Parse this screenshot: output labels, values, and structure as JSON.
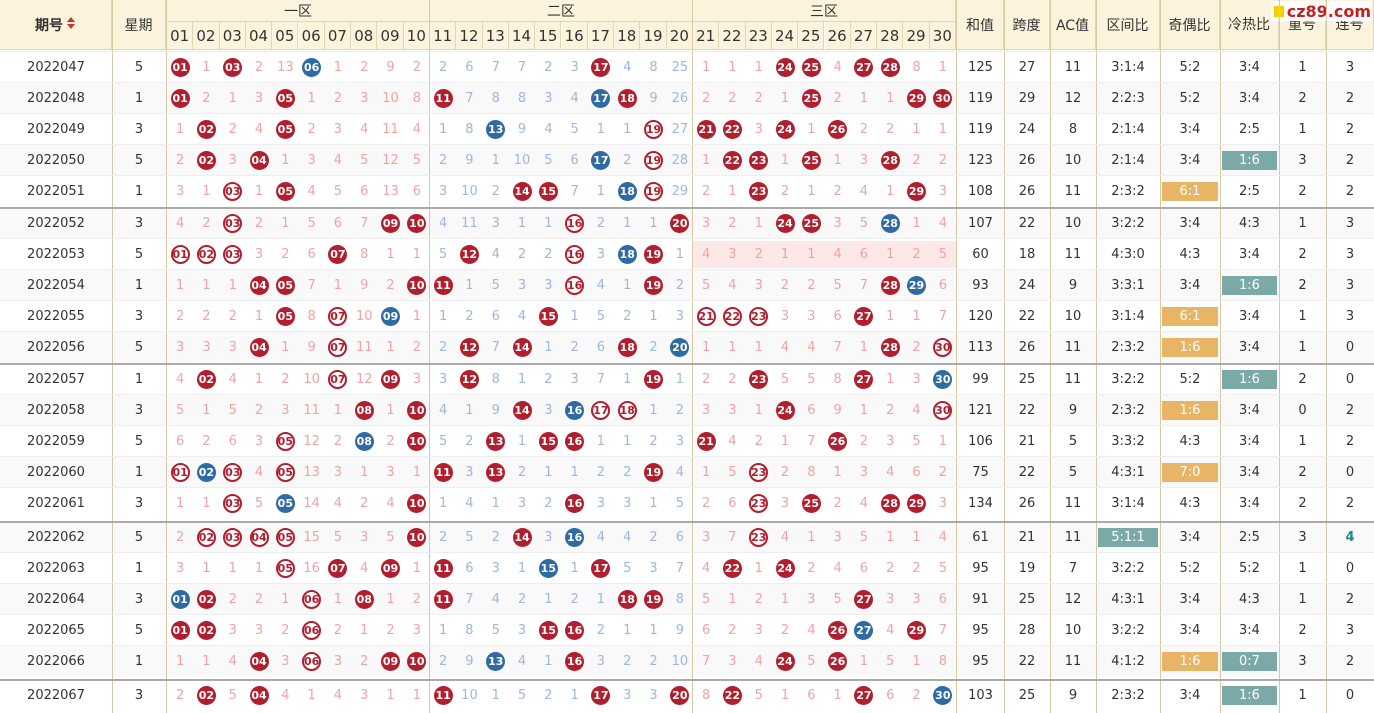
{
  "header": {
    "issue": "期号",
    "week": "星期",
    "zone1": "一区",
    "zone2": "二区",
    "zone3": "三区",
    "sum": "和值",
    "span": "跨度",
    "ac": "AC值",
    "zone_ratio": "区间比",
    "odd_even": "奇偶比",
    "hot_cold": "冷热比",
    "repeat": "重号",
    "consec": "连号",
    "numbers": [
      "01",
      "02",
      "03",
      "04",
      "05",
      "06",
      "07",
      "08",
      "09",
      "10",
      "11",
      "12",
      "13",
      "14",
      "15",
      "16",
      "17",
      "18",
      "19",
      "20",
      "21",
      "22",
      "23",
      "24",
      "25",
      "26",
      "27",
      "28",
      "29",
      "30"
    ]
  },
  "logo": {
    "text": "cz89.com"
  },
  "colors": {
    "ball_red": "#b11f2e",
    "ball_blue": "#2f6aa3",
    "tag_orange": "#e8b567",
    "tag_teal": "#7aa9a8",
    "header_bg": "#fcf3dc"
  },
  "rows": [
    {
      "issue": "2022047",
      "week": "5",
      "cells": [
        "r01",
        "1",
        "r03",
        "2",
        "13",
        "b06",
        "1",
        "2",
        "9",
        "2",
        "2",
        "6",
        "7",
        "7",
        "2",
        "3",
        "r17",
        "4",
        "8",
        "25",
        "1",
        "1",
        "1",
        "r24",
        "r25",
        "4",
        "r27",
        "r28",
        "8",
        "1"
      ],
      "sum": "125",
      "span": "27",
      "ac": "11",
      "zone": "3:1:4",
      "oe": "5:2",
      "hc": "3:4",
      "rep": "1",
      "con": "3"
    },
    {
      "issue": "2022048",
      "week": "1",
      "cells": [
        "r01",
        "2",
        "1",
        "3",
        "r05",
        "1",
        "2",
        "3",
        "10",
        "8",
        "r11",
        "7",
        "8",
        "8",
        "3",
        "4",
        "b17",
        "r18",
        "9",
        "26",
        "2",
        "2",
        "2",
        "1",
        "r25",
        "2",
        "1",
        "1",
        "r29",
        "r30"
      ],
      "sum": "119",
      "span": "29",
      "ac": "12",
      "zone": "2:2:3",
      "oe": "5:2",
      "hc": "3:4",
      "rep": "2",
      "con": "2"
    },
    {
      "issue": "2022049",
      "week": "3",
      "cells": [
        "1",
        "r02",
        "2",
        "4",
        "r05",
        "2",
        "3",
        "4",
        "11",
        "4",
        "1",
        "8",
        "b13",
        "9",
        "4",
        "5",
        "1",
        "1",
        "o19",
        "27",
        "r21",
        "r22",
        "3",
        "r24",
        "1",
        "r26",
        "2",
        "2",
        "1",
        "1"
      ],
      "sum": "119",
      "span": "24",
      "ac": "8",
      "zone": "2:1:4",
      "oe": "3:4",
      "hc": "2:5",
      "rep": "1",
      "con": "2"
    },
    {
      "issue": "2022050",
      "week": "5",
      "cells": [
        "2",
        "r02",
        "3",
        "r04",
        "1",
        "3",
        "4",
        "5",
        "12",
        "5",
        "2",
        "9",
        "1",
        "10",
        "5",
        "6",
        "b17",
        "2",
        "o19",
        "28",
        "1",
        "r22",
        "r23",
        "1",
        "r25",
        "1",
        "3",
        "r28",
        "2",
        "2"
      ],
      "sum": "123",
      "span": "26",
      "ac": "10",
      "zone": "2:1:4",
      "oe": "3:4",
      "hc": "1:6",
      "hcTag": "teal",
      "rep": "3",
      "con": "2"
    },
    {
      "issue": "2022051",
      "week": "1",
      "cells": [
        "3",
        "1",
        "o03",
        "1",
        "r05",
        "4",
        "5",
        "6",
        "13",
        "6",
        "3",
        "10",
        "2",
        "r14",
        "r15",
        "7",
        "1",
        "b18",
        "o19",
        "29",
        "2",
        "1",
        "r23",
        "2",
        "1",
        "2",
        "4",
        "1",
        "r29",
        "3"
      ],
      "sum": "108",
      "span": "26",
      "ac": "11",
      "zone": "2:3:2",
      "oe": "6:1",
      "oeTag": "orange",
      "hc": "2:5",
      "rep": "2",
      "con": "2"
    },
    {
      "issue": "2022052",
      "week": "3",
      "cells": [
        "4",
        "2",
        "o03",
        "2",
        "1",
        "5",
        "6",
        "7",
        "r09",
        "r10",
        "4",
        "11",
        "3",
        "1",
        "1",
        "o16",
        "2",
        "1",
        "1",
        "r20",
        "3",
        "2",
        "1",
        "r24",
        "r25",
        "3",
        "5",
        "b28",
        "1",
        "4"
      ],
      "sum": "107",
      "span": "22",
      "ac": "10",
      "zone": "3:2:2",
      "oe": "3:4",
      "hc": "4:3",
      "rep": "1",
      "con": "3"
    },
    {
      "issue": "2022053",
      "week": "5",
      "cells": [
        "o01",
        "o02",
        "o03",
        "3",
        "2",
        "6",
        "r07",
        "8",
        "1",
        "1",
        "5",
        "r12",
        "4",
        "2",
        "2",
        "o16",
        "3",
        "b18",
        "r19",
        "1",
        "4",
        "3",
        "2",
        "1",
        "1",
        "4",
        "6",
        "1",
        "2",
        "5"
      ],
      "sum": "60",
      "span": "18",
      "ac": "11",
      "zone": "4:3:0",
      "oe": "4:3",
      "hc": "3:4",
      "rep": "2",
      "con": "3",
      "z3bg": true
    },
    {
      "issue": "2022054",
      "week": "1",
      "cells": [
        "1",
        "1",
        "1",
        "r04",
        "r05",
        "7",
        "1",
        "9",
        "2",
        "r10",
        "r11",
        "1",
        "5",
        "3",
        "3",
        "o16",
        "4",
        "1",
        "r19",
        "2",
        "5",
        "4",
        "3",
        "2",
        "2",
        "5",
        "7",
        "r28",
        "b29",
        "6"
      ],
      "sum": "93",
      "span": "24",
      "ac": "9",
      "zone": "3:3:1",
      "oe": "3:4",
      "hc": "1:6",
      "hcTag": "teal",
      "rep": "2",
      "con": "3"
    },
    {
      "issue": "2022055",
      "week": "3",
      "cells": [
        "2",
        "2",
        "2",
        "1",
        "r05",
        "8",
        "o07",
        "10",
        "b09",
        "1",
        "1",
        "2",
        "6",
        "4",
        "r15",
        "1",
        "5",
        "2",
        "1",
        "3",
        "o21",
        "o22",
        "o23",
        "3",
        "3",
        "6",
        "r27",
        "1",
        "1",
        "7"
      ],
      "sum": "120",
      "span": "22",
      "ac": "10",
      "zone": "3:1:4",
      "oe": "6:1",
      "oeTag": "orange",
      "hc": "3:4",
      "rep": "1",
      "con": "3"
    },
    {
      "issue": "2022056",
      "week": "5",
      "cells": [
        "3",
        "3",
        "3",
        "r04",
        "1",
        "9",
        "o07",
        "11",
        "1",
        "2",
        "2",
        "r12",
        "7",
        "r14",
        "1",
        "2",
        "6",
        "r18",
        "2",
        "b20",
        "1",
        "1",
        "1",
        "4",
        "4",
        "7",
        "1",
        "r28",
        "2",
        "o30"
      ],
      "sum": "113",
      "span": "26",
      "ac": "11",
      "zone": "2:3:2",
      "oe": "1:6",
      "oeTag": "orange",
      "hc": "3:4",
      "rep": "1",
      "con": "0"
    },
    {
      "issue": "2022057",
      "week": "1",
      "cells": [
        "4",
        "r02",
        "4",
        "1",
        "2",
        "10",
        "o07",
        "12",
        "r09",
        "3",
        "3",
        "r12",
        "8",
        "1",
        "2",
        "3",
        "7",
        "1",
        "r19",
        "1",
        "2",
        "2",
        "r23",
        "5",
        "5",
        "8",
        "r27",
        "1",
        "3",
        "b30"
      ],
      "sum": "99",
      "span": "25",
      "ac": "11",
      "zone": "3:2:2",
      "oe": "5:2",
      "hc": "1:6",
      "hcTag": "teal",
      "rep": "2",
      "con": "0"
    },
    {
      "issue": "2022058",
      "week": "3",
      "cells": [
        "5",
        "1",
        "5",
        "2",
        "3",
        "11",
        "1",
        "r08",
        "1",
        "r10",
        "4",
        "1",
        "9",
        "r14",
        "3",
        "b16",
        "o17",
        "o18",
        "1",
        "2",
        "3",
        "3",
        "1",
        "r24",
        "6",
        "9",
        "1",
        "2",
        "4",
        "o30"
      ],
      "sum": "121",
      "span": "22",
      "ac": "9",
      "zone": "2:3:2",
      "oe": "1:6",
      "oeTag": "orange",
      "hc": "3:4",
      "rep": "0",
      "con": "2"
    },
    {
      "issue": "2022059",
      "week": "5",
      "cells": [
        "6",
        "2",
        "6",
        "3",
        "o05",
        "12",
        "2",
        "b08",
        "2",
        "r10",
        "5",
        "2",
        "r13",
        "1",
        "r15",
        "r16",
        "1",
        "1",
        "2",
        "3",
        "r21",
        "4",
        "2",
        "1",
        "7",
        "r26",
        "2",
        "3",
        "5",
        "1"
      ],
      "sum": "106",
      "span": "21",
      "ac": "5",
      "zone": "3:3:2",
      "oe": "4:3",
      "hc": "3:4",
      "rep": "1",
      "con": "2"
    },
    {
      "issue": "2022060",
      "week": "1",
      "cells": [
        "o01",
        "b02",
        "o03",
        "4",
        "o05",
        "13",
        "3",
        "1",
        "3",
        "1",
        "r11",
        "3",
        "r13",
        "2",
        "1",
        "1",
        "2",
        "2",
        "r19",
        "4",
        "1",
        "5",
        "o23",
        "2",
        "8",
        "1",
        "3",
        "4",
        "6",
        "2"
      ],
      "sum": "75",
      "span": "22",
      "ac": "5",
      "zone": "4:3:1",
      "oe": "7:0",
      "oeTag": "orange",
      "hc": "3:4",
      "rep": "2",
      "con": "0"
    },
    {
      "issue": "2022061",
      "week": "3",
      "cells": [
        "1",
        "1",
        "o03",
        "5",
        "b05",
        "14",
        "4",
        "2",
        "4",
        "r10",
        "1",
        "4",
        "1",
        "3",
        "2",
        "r16",
        "3",
        "3",
        "1",
        "5",
        "2",
        "6",
        "o23",
        "3",
        "r25",
        "2",
        "4",
        "r28",
        "r29",
        "3"
      ],
      "sum": "134",
      "span": "26",
      "ac": "11",
      "zone": "3:1:4",
      "oe": "4:3",
      "hc": "3:4",
      "rep": "2",
      "con": "2"
    },
    {
      "issue": "2022062",
      "week": "5",
      "cells": [
        "2",
        "o02",
        "o03",
        "o04",
        "o05",
        "15",
        "5",
        "3",
        "5",
        "r10",
        "2",
        "5",
        "2",
        "r14",
        "3",
        "b16",
        "4",
        "4",
        "2",
        "6",
        "3",
        "7",
        "o23",
        "4",
        "1",
        "3",
        "5",
        "1",
        "1",
        "4"
      ],
      "sum": "61",
      "span": "21",
      "ac": "11",
      "zone": "5:1:1",
      "zoneTag": "teal",
      "oe": "3:4",
      "hc": "2:5",
      "rep": "3",
      "con": "4",
      "conHi": true
    },
    {
      "issue": "2022063",
      "week": "1",
      "cells": [
        "3",
        "1",
        "1",
        "1",
        "o05",
        "16",
        "r07",
        "4",
        "r09",
        "1",
        "r11",
        "6",
        "3",
        "1",
        "b15",
        "1",
        "r17",
        "5",
        "3",
        "7",
        "4",
        "r22",
        "1",
        "r24",
        "2",
        "4",
        "6",
        "2",
        "2",
        "5"
      ],
      "sum": "95",
      "span": "19",
      "ac": "7",
      "zone": "3:2:2",
      "oe": "5:2",
      "hc": "5:2",
      "rep": "1",
      "con": "0"
    },
    {
      "issue": "2022064",
      "week": "3",
      "cells": [
        "b01",
        "r02",
        "2",
        "2",
        "1",
        "o06",
        "1",
        "r08",
        "1",
        "2",
        "r11",
        "7",
        "4",
        "2",
        "1",
        "2",
        "1",
        "r18",
        "r19",
        "8",
        "5",
        "1",
        "2",
        "1",
        "3",
        "5",
        "r27",
        "3",
        "3",
        "6"
      ],
      "sum": "91",
      "span": "25",
      "ac": "12",
      "zone": "4:3:1",
      "oe": "3:4",
      "hc": "4:3",
      "rep": "1",
      "con": "2"
    },
    {
      "issue": "2022065",
      "week": "5",
      "cells": [
        "r01",
        "r02",
        "3",
        "3",
        "2",
        "o06",
        "2",
        "1",
        "2",
        "3",
        "1",
        "8",
        "5",
        "3",
        "r15",
        "r16",
        "2",
        "1",
        "1",
        "9",
        "6",
        "2",
        "3",
        "2",
        "4",
        "r26",
        "b27",
        "4",
        "r29",
        "7"
      ],
      "sum": "95",
      "span": "28",
      "ac": "10",
      "zone": "3:2:2",
      "oe": "3:4",
      "hc": "3:4",
      "rep": "2",
      "con": "3"
    },
    {
      "issue": "2022066",
      "week": "1",
      "cells": [
        "1",
        "1",
        "4",
        "r04",
        "3",
        "o06",
        "3",
        "2",
        "r09",
        "r10",
        "2",
        "9",
        "b13",
        "4",
        "1",
        "r16",
        "3",
        "2",
        "2",
        "10",
        "7",
        "3",
        "4",
        "r24",
        "5",
        "r26",
        "1",
        "5",
        "1",
        "8"
      ],
      "sum": "95",
      "span": "22",
      "ac": "11",
      "zone": "4:1:2",
      "oe": "1:6",
      "oeTag": "orange",
      "hc": "0:7",
      "hcTag": "teal",
      "rep": "3",
      "con": "2"
    },
    {
      "issue": "2022067",
      "week": "3",
      "cells": [
        "2",
        "r02",
        "5",
        "r04",
        "4",
        "1",
        "4",
        "3",
        "1",
        "1",
        "r11",
        "10",
        "1",
        "5",
        "2",
        "1",
        "r17",
        "3",
        "3",
        "r20",
        "8",
        "r22",
        "5",
        "1",
        "6",
        "1",
        "r27",
        "6",
        "2",
        "b30"
      ],
      "sum": "103",
      "span": "25",
      "ac": "9",
      "zone": "2:3:2",
      "oe": "3:4",
      "hc": "1:6",
      "hcTag": "teal",
      "rep": "1",
      "con": "0"
    }
  ]
}
